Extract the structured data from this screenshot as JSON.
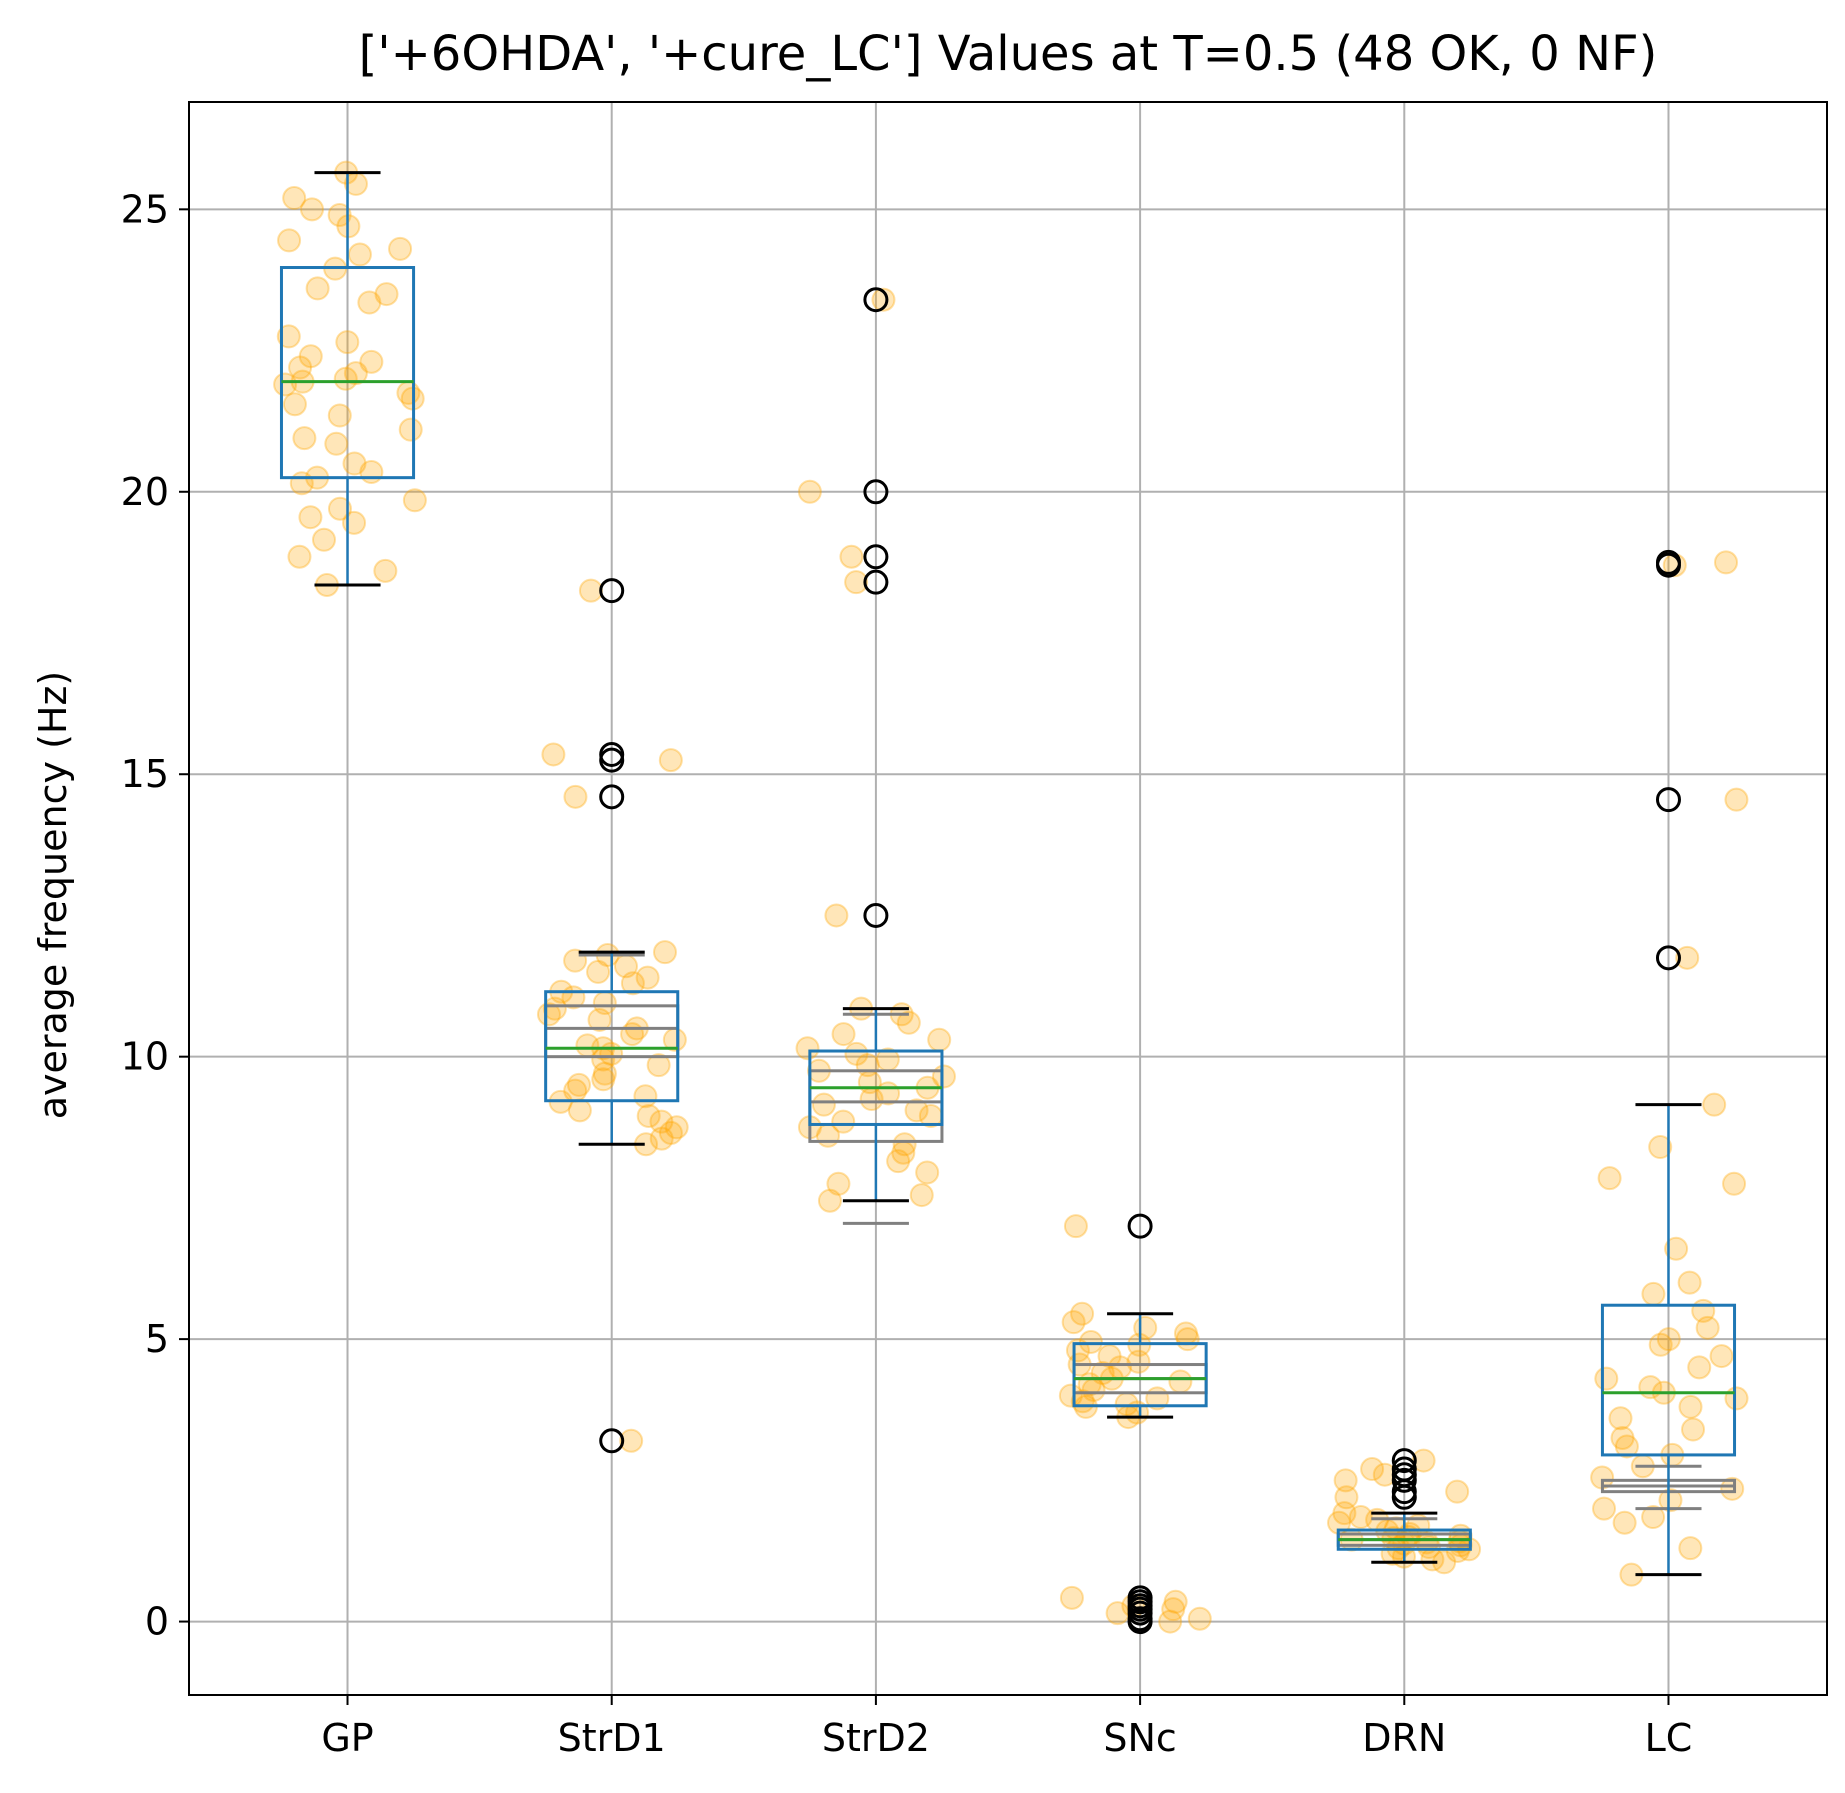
{
  "chart_data": {
    "type": "box",
    "title": "['+6OHDA', '+cure_LC'] Values at T=0.5 (48 OK, 0 NF)",
    "xlabel": "",
    "ylabel": "average frequency (Hz)",
    "ylim": [
      -1.3,
      26.9
    ],
    "yticks": [
      0,
      5,
      10,
      15,
      20,
      25
    ],
    "grid": true,
    "categories": [
      "GP",
      "StrD1",
      "StrD2",
      "SNc",
      "DRN",
      "LC"
    ],
    "colors": {
      "box": "#1f77b4",
      "median": "#2ca02c",
      "whisker": "#1f77b4",
      "cap": "#000000",
      "outlier": "#000000",
      "points": "#ffa500",
      "reference": "#808080",
      "grid": "#b0b0b0"
    },
    "boxes": [
      {
        "category": "GP",
        "q1": 20.25,
        "median": 21.95,
        "q3": 23.97,
        "whisker_low": 18.35,
        "whisker_high": 25.65,
        "outliers": []
      },
      {
        "category": "StrD1",
        "q1": 9.22,
        "median": 10.15,
        "q3": 11.15,
        "whisker_low": 8.45,
        "whisker_high": 11.85,
        "outliers": [
          18.25,
          15.35,
          15.25,
          14.6,
          3.2
        ]
      },
      {
        "category": "StrD2",
        "q1": 8.8,
        "median": 9.45,
        "q3": 10.1,
        "whisker_low": 7.45,
        "whisker_high": 10.85,
        "outliers": [
          23.4,
          20.0,
          18.85,
          18.4,
          12.5
        ]
      },
      {
        "category": "SNc",
        "q1": 3.82,
        "median": 4.3,
        "q3": 4.92,
        "whisker_low": 3.62,
        "whisker_high": 5.45,
        "outliers": [
          7.0,
          0.42,
          0.35,
          0.28,
          0.22,
          0.15,
          0.05,
          0.0
        ]
      },
      {
        "category": "DRN",
        "q1": 1.28,
        "median": 1.45,
        "q3": 1.62,
        "whisker_low": 1.05,
        "whisker_high": 1.92,
        "outliers": [
          2.85,
          2.7,
          2.6,
          2.5,
          2.3,
          2.2
        ]
      },
      {
        "category": "LC",
        "q1": 2.95,
        "median": 4.05,
        "q3": 5.6,
        "whisker_low": 0.83,
        "whisker_high": 9.15,
        "outliers": [
          18.75,
          18.7,
          14.55,
          11.75
        ]
      }
    ],
    "reference_boxes": [
      {
        "category": "StrD1",
        "q1": 10.0,
        "median": 10.5,
        "q3": 10.9,
        "whisker_low": null,
        "whisker_high": 11.8
      },
      {
        "category": "StrD2",
        "q1": 8.5,
        "median": 9.2,
        "q3": 9.75,
        "whisker_low": 7.05,
        "whisker_high": 10.75
      },
      {
        "category": "SNc",
        "q1": 4.05,
        "median": 4.3,
        "q3": 4.55,
        "whisker_low": null,
        "whisker_high": null
      },
      {
        "category": "DRN",
        "q1": 1.35,
        "median": 1.45,
        "q3": 1.55,
        "whisker_low": null,
        "whisker_high": 1.82
      },
      {
        "category": "LC",
        "q1": 2.3,
        "median": 2.4,
        "q3": 2.5,
        "whisker_low": 2.0,
        "whisker_high": 2.75
      }
    ],
    "points": [
      {
        "category": "GP",
        "values": [
          25.65,
          25.45,
          25.2,
          25.0,
          24.9,
          24.7,
          24.45,
          24.3,
          24.2,
          23.95,
          23.6,
          23.5,
          23.35,
          22.75,
          22.65,
          22.4,
          22.3,
          22.2,
          22.1,
          22.0,
          21.95,
          21.9,
          21.75,
          21.65,
          21.55,
          21.35,
          21.1,
          20.95,
          20.85,
          20.5,
          20.35,
          20.25,
          20.15,
          19.85,
          19.7,
          19.55,
          19.45,
          19.15,
          18.85,
          18.6,
          18.35
        ]
      },
      {
        "category": "StrD1",
        "values": [
          18.25,
          15.35,
          15.25,
          14.6,
          11.85,
          11.8,
          11.7,
          11.6,
          11.5,
          11.4,
          11.3,
          11.15,
          11.05,
          10.95,
          10.85,
          10.75,
          10.65,
          10.5,
          10.4,
          10.3,
          10.2,
          10.15,
          10.05,
          9.95,
          9.85,
          9.7,
          9.6,
          9.5,
          9.4,
          9.3,
          9.2,
          9.05,
          8.95,
          8.85,
          8.75,
          8.65,
          8.55,
          8.45,
          3.2
        ]
      },
      {
        "category": "StrD2",
        "values": [
          23.4,
          20.0,
          18.85,
          18.4,
          12.5,
          10.85,
          10.75,
          10.6,
          10.4,
          10.3,
          10.15,
          10.05,
          9.95,
          9.85,
          9.75,
          9.65,
          9.55,
          9.45,
          9.35,
          9.25,
          9.15,
          9.05,
          8.95,
          8.85,
          8.75,
          8.6,
          8.45,
          8.3,
          8.15,
          7.95,
          7.75,
          7.55,
          7.45
        ]
      },
      {
        "category": "SNc",
        "values": [
          7.0,
          5.45,
          5.3,
          5.2,
          5.1,
          5.0,
          4.95,
          4.9,
          4.8,
          4.7,
          4.6,
          4.55,
          4.5,
          4.4,
          4.3,
          4.25,
          4.2,
          4.1,
          4.0,
          3.95,
          3.9,
          3.85,
          3.8,
          3.7,
          3.62,
          0.42,
          0.35,
          0.28,
          0.22,
          0.15,
          0.05,
          0.0
        ]
      },
      {
        "category": "DRN",
        "values": [
          2.85,
          2.7,
          2.6,
          2.5,
          2.3,
          2.2,
          1.92,
          1.85,
          1.8,
          1.75,
          1.7,
          1.65,
          1.6,
          1.55,
          1.52,
          1.5,
          1.48,
          1.45,
          1.42,
          1.4,
          1.38,
          1.35,
          1.32,
          1.3,
          1.28,
          1.25,
          1.2,
          1.15,
          1.1,
          1.05
        ]
      },
      {
        "category": "LC",
        "values": [
          18.75,
          18.7,
          14.55,
          11.75,
          9.15,
          8.4,
          7.85,
          7.75,
          6.6,
          6.0,
          5.8,
          5.5,
          5.2,
          5.0,
          4.9,
          4.7,
          4.5,
          4.3,
          4.15,
          4.05,
          3.95,
          3.8,
          3.6,
          3.4,
          3.25,
          3.1,
          2.95,
          2.75,
          2.55,
          2.35,
          2.15,
          2.0,
          1.85,
          1.75,
          1.3,
          0.83
        ]
      }
    ]
  }
}
